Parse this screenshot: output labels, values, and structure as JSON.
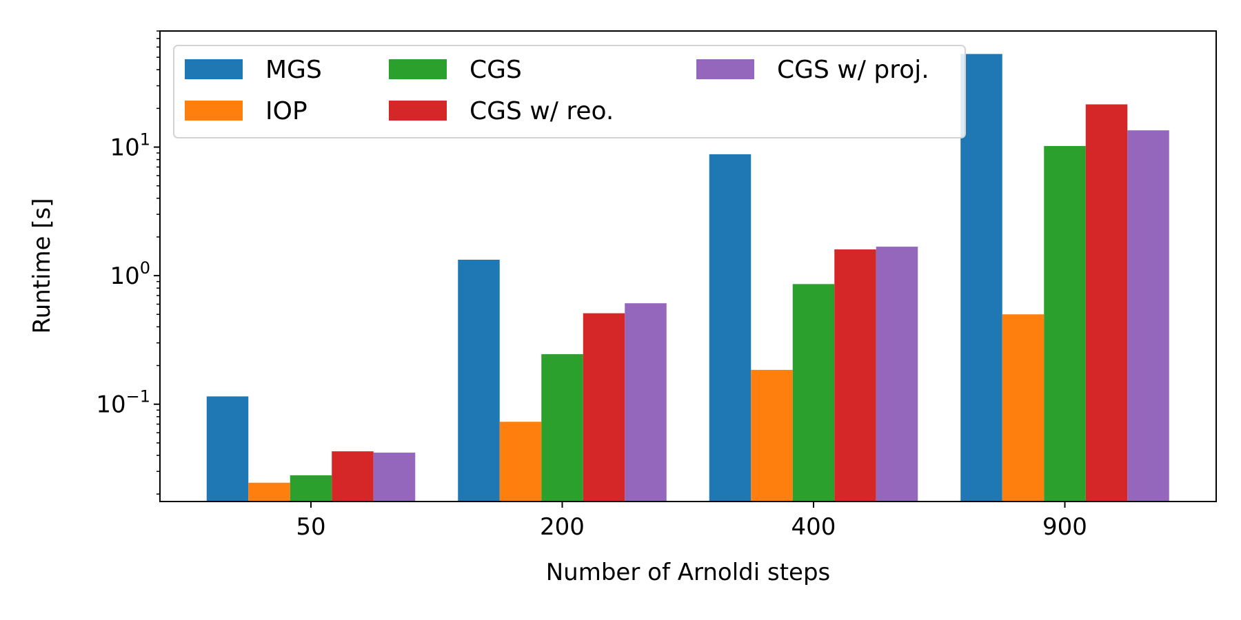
{
  "chart_data": {
    "type": "bar",
    "title": "",
    "xlabel": "Number of Arnoldi steps",
    "ylabel": "Runtime [s]",
    "yscale": "log",
    "ylim": [
      0.0175,
      80
    ],
    "categories": [
      "50",
      "200",
      "400",
      "900"
    ],
    "yticks": [
      {
        "value": 0.1,
        "base": "10",
        "exp": "−1"
      },
      {
        "value": 1,
        "base": "10",
        "exp": "0"
      },
      {
        "value": 10,
        "base": "10",
        "exp": "1"
      }
    ],
    "series": [
      {
        "name": "MGS",
        "color": "#1f77b4",
        "values": [
          0.115,
          1.33,
          8.8,
          53
        ]
      },
      {
        "name": "IOP",
        "color": "#ff7f0e",
        "values": [
          0.0245,
          0.073,
          0.185,
          0.5
        ]
      },
      {
        "name": "CGS",
        "color": "#2ca02c",
        "values": [
          0.028,
          0.245,
          0.86,
          10.2
        ]
      },
      {
        "name": "CGS w/ reo.",
        "color": "#d62728",
        "values": [
          0.043,
          0.51,
          1.6,
          21.5
        ]
      },
      {
        "name": "CGS w/ proj.",
        "color": "#9467bd",
        "values": [
          0.042,
          0.61,
          1.68,
          13.5
        ]
      }
    ],
    "legend": {
      "position": "top-left",
      "columns": 3
    },
    "grid": false
  }
}
